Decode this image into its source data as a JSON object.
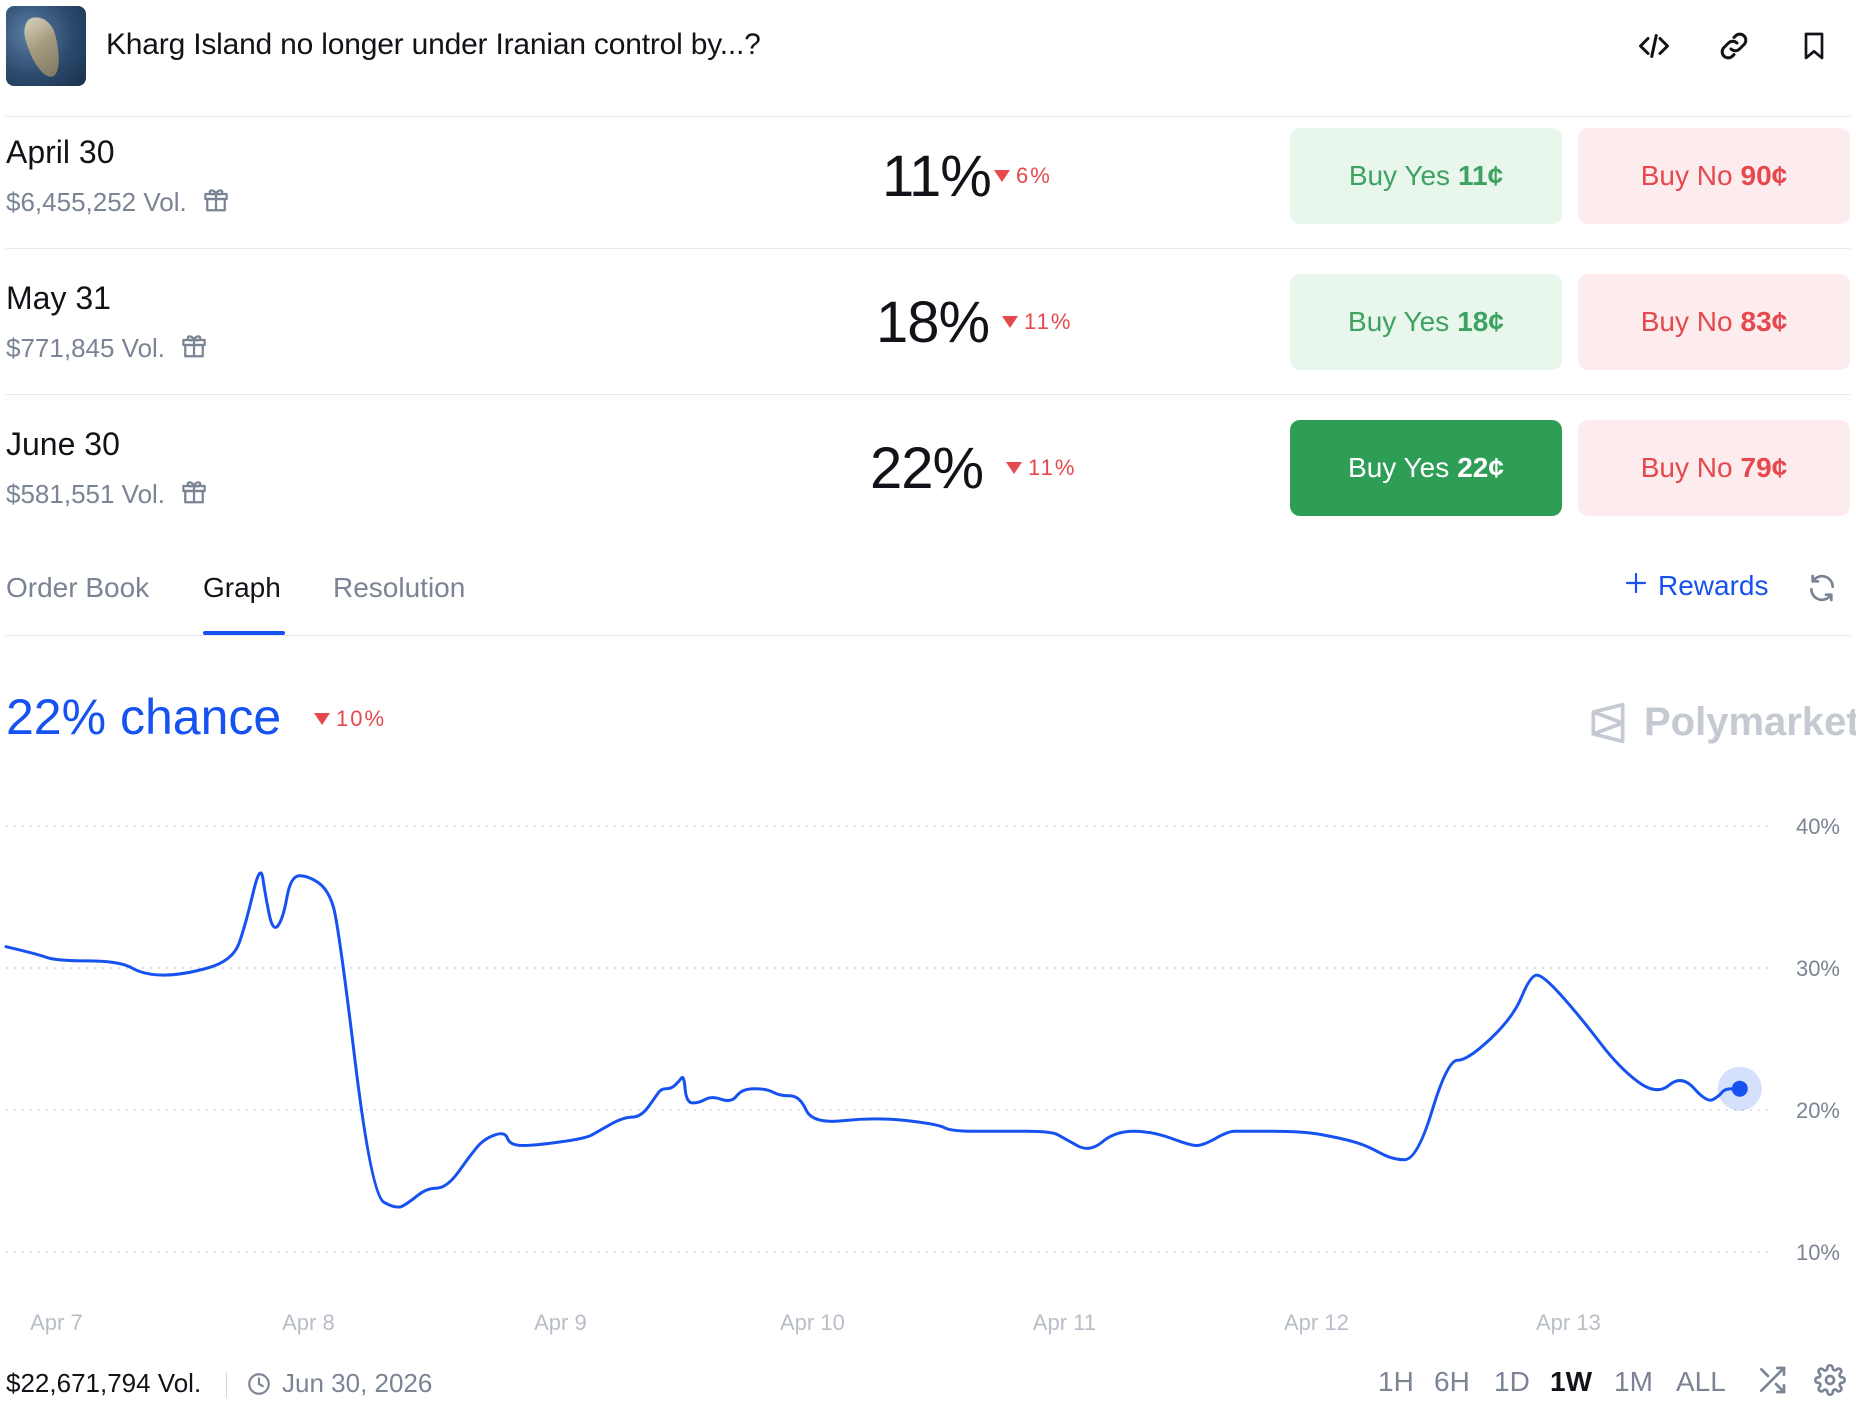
{
  "header": {
    "title": "Kharg Island no longer under Iranian control by...?",
    "icons": [
      "embed-icon",
      "link-icon",
      "bookmark-icon"
    ]
  },
  "markets": [
    {
      "label": "April 30",
      "volume": "$6,455,252 Vol.",
      "percent": "11%",
      "delta": "6%",
      "yes_label": "Buy Yes",
      "yes_price": "11¢",
      "no_label": "Buy No",
      "no_price": "90¢",
      "selected": false
    },
    {
      "label": "May 31",
      "volume": "$771,845 Vol.",
      "percent": "18%",
      "delta": "11%",
      "yes_label": "Buy Yes",
      "yes_price": "18¢",
      "no_label": "Buy No",
      "no_price": "83¢",
      "selected": false
    },
    {
      "label": "June 30",
      "volume": "$581,551 Vol.",
      "percent": "22%",
      "delta": "11%",
      "yes_label": "Buy Yes",
      "yes_price": "22¢",
      "no_label": "Buy No",
      "no_price": "79¢",
      "selected": true
    }
  ],
  "tabs": [
    {
      "label": "Order Book",
      "active": false
    },
    {
      "label": "Graph",
      "active": true
    },
    {
      "label": "Resolution",
      "active": false
    }
  ],
  "rewards_label": "Rewards",
  "chance": {
    "text": "22% chance",
    "delta": "10%"
  },
  "brand": "Polymarket",
  "colors": {
    "accent": "#1652f0",
    "down": "#e5484d",
    "yes": "#2e9e57",
    "yes_soft": "#e8f6ec",
    "no_soft": "#fcecee"
  },
  "chart_data": {
    "type": "line",
    "title": "",
    "xlabel": "",
    "ylabel": "",
    "ylim": [
      10,
      40
    ],
    "yticks": [
      "40%",
      "30%",
      "20%",
      "10%"
    ],
    "ytick_values": [
      40,
      30,
      20,
      10
    ],
    "xticks": [
      "Apr 7",
      "Apr 8",
      "Apr 9",
      "Apr 10",
      "Apr 11",
      "Apr 12",
      "Apr 13"
    ],
    "grid": true,
    "series": [
      {
        "x": [
          6.8,
          6.92,
          7.0,
          7.25,
          7.35,
          7.5,
          7.7,
          7.75,
          7.81,
          7.83,
          7.86,
          7.9,
          7.93,
          8.0,
          8.08,
          8.12,
          8.25,
          8.35,
          8.4,
          8.47,
          8.55,
          8.65,
          8.7,
          8.78,
          8.8,
          8.9,
          9.1,
          9.15,
          9.25,
          9.32,
          9.38,
          9.4,
          9.44,
          9.47,
          9.49,
          9.5,
          9.55,
          9.6,
          9.68,
          9.72,
          9.82,
          9.87,
          9.95,
          10.0,
          10.25,
          10.5,
          10.55,
          10.75,
          10.95,
          11.0,
          11.1,
          11.2,
          11.35,
          11.5,
          11.55,
          11.65,
          11.7,
          11.95,
          12.1,
          12.2,
          12.3,
          12.4,
          12.52,
          12.6,
          12.78,
          12.85,
          12.9,
          13.05,
          13.2,
          13.35,
          13.45,
          13.55,
          13.6,
          13.62,
          13.68
        ],
        "y": [
          31.5,
          31.0,
          30.5,
          30.5,
          29.5,
          29.5,
          30.5,
          33.0,
          37.5,
          35.0,
          32.5,
          33.5,
          36.5,
          36.5,
          35.5,
          33.0,
          14.0,
          13.0,
          13.5,
          14.5,
          14.5,
          17.0,
          18.0,
          18.5,
          17.5,
          17.5,
          18.0,
          18.5,
          19.5,
          19.5,
          21.0,
          21.5,
          21.5,
          22.0,
          22.5,
          20.5,
          20.5,
          21.0,
          20.5,
          21.5,
          21.5,
          21.0,
          21.0,
          19.0,
          19.5,
          19.0,
          18.5,
          18.5,
          18.5,
          18.0,
          17.0,
          18.5,
          18.5,
          17.5,
          17.5,
          18.5,
          18.5,
          18.5,
          18.0,
          17.5,
          16.5,
          16.5,
          23.5,
          23.5,
          26.5,
          29.5,
          29.5,
          26.5,
          23.0,
          21.0,
          22.5,
          20.5,
          21.0,
          21.5,
          21.5
        ]
      }
    ],
    "current_point": {
      "x": 13.68,
      "y": 21.5
    }
  },
  "footer": {
    "volume": "$22,671,794 Vol.",
    "end_date": "Jun 30, 2026",
    "ranges": [
      {
        "label": "1H",
        "active": false
      },
      {
        "label": "6H",
        "active": false
      },
      {
        "label": "1D",
        "active": false
      },
      {
        "label": "1W",
        "active": true
      },
      {
        "label": "1M",
        "active": false
      },
      {
        "label": "ALL",
        "active": false
      }
    ]
  }
}
